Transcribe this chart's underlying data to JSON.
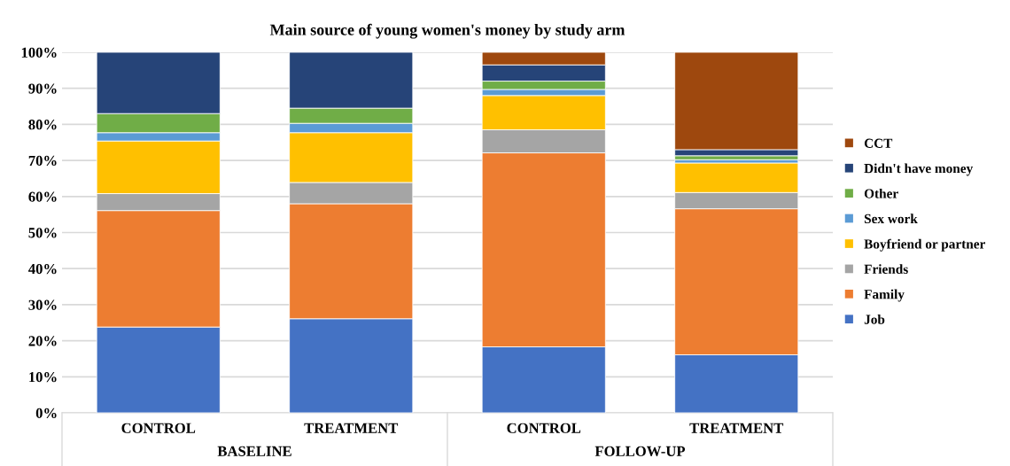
{
  "chart_data": {
    "type": "bar",
    "stacked": true,
    "title": "Main source of young women's money by study arm",
    "categories": [
      "CONTROL",
      "TREATMENT",
      "CONTROL",
      "TREATMENT"
    ],
    "annotations": [
      "BASELINE",
      "FOLLOW-UP"
    ],
    "series": [
      {
        "name": "Job",
        "color": "#4472c4",
        "values": [
          23.8,
          26.1,
          18.3,
          16.1
        ]
      },
      {
        "name": "Family",
        "color": "#ed7d31",
        "values": [
          32.3,
          31.9,
          53.8,
          40.5
        ]
      },
      {
        "name": "Friends",
        "color": "#a5a5a5",
        "values": [
          4.7,
          5.9,
          6.4,
          4.5
        ]
      },
      {
        "name": "Boyfriend or partner",
        "color": "#ffc000",
        "values": [
          14.6,
          13.8,
          9.5,
          8.2
        ]
      },
      {
        "name": "Sex work",
        "color": "#5b9bd5",
        "values": [
          2.3,
          2.6,
          1.7,
          0.9
        ]
      },
      {
        "name": "Other",
        "color": "#70ad47",
        "values": [
          5.3,
          4.2,
          2.3,
          1.1
        ]
      },
      {
        "name": "Didn't have money",
        "color": "#264478",
        "values": [
          17.0,
          15.5,
          4.5,
          1.7
        ]
      },
      {
        "name": "CCT",
        "color": "#9e480e",
        "values": [
          null,
          null,
          3.5,
          27.0
        ]
      }
    ],
    "ylim": [
      0,
      100
    ],
    "yticks": [
      {
        "value": 0,
        "label": "0%"
      },
      {
        "value": 10,
        "label": "10%"
      },
      {
        "value": 20,
        "label": "20%"
      },
      {
        "value": 30,
        "label": "30%"
      },
      {
        "value": 40,
        "label": "40%"
      },
      {
        "value": 50,
        "label": "50%"
      },
      {
        "value": 60,
        "label": "60%"
      },
      {
        "value": 70,
        "label": "70%"
      },
      {
        "value": 80,
        "label": "80%"
      },
      {
        "value": 90,
        "label": "90%"
      },
      {
        "value": 100,
        "label": "100%"
      }
    ],
    "grid": "y",
    "legend": "right"
  }
}
